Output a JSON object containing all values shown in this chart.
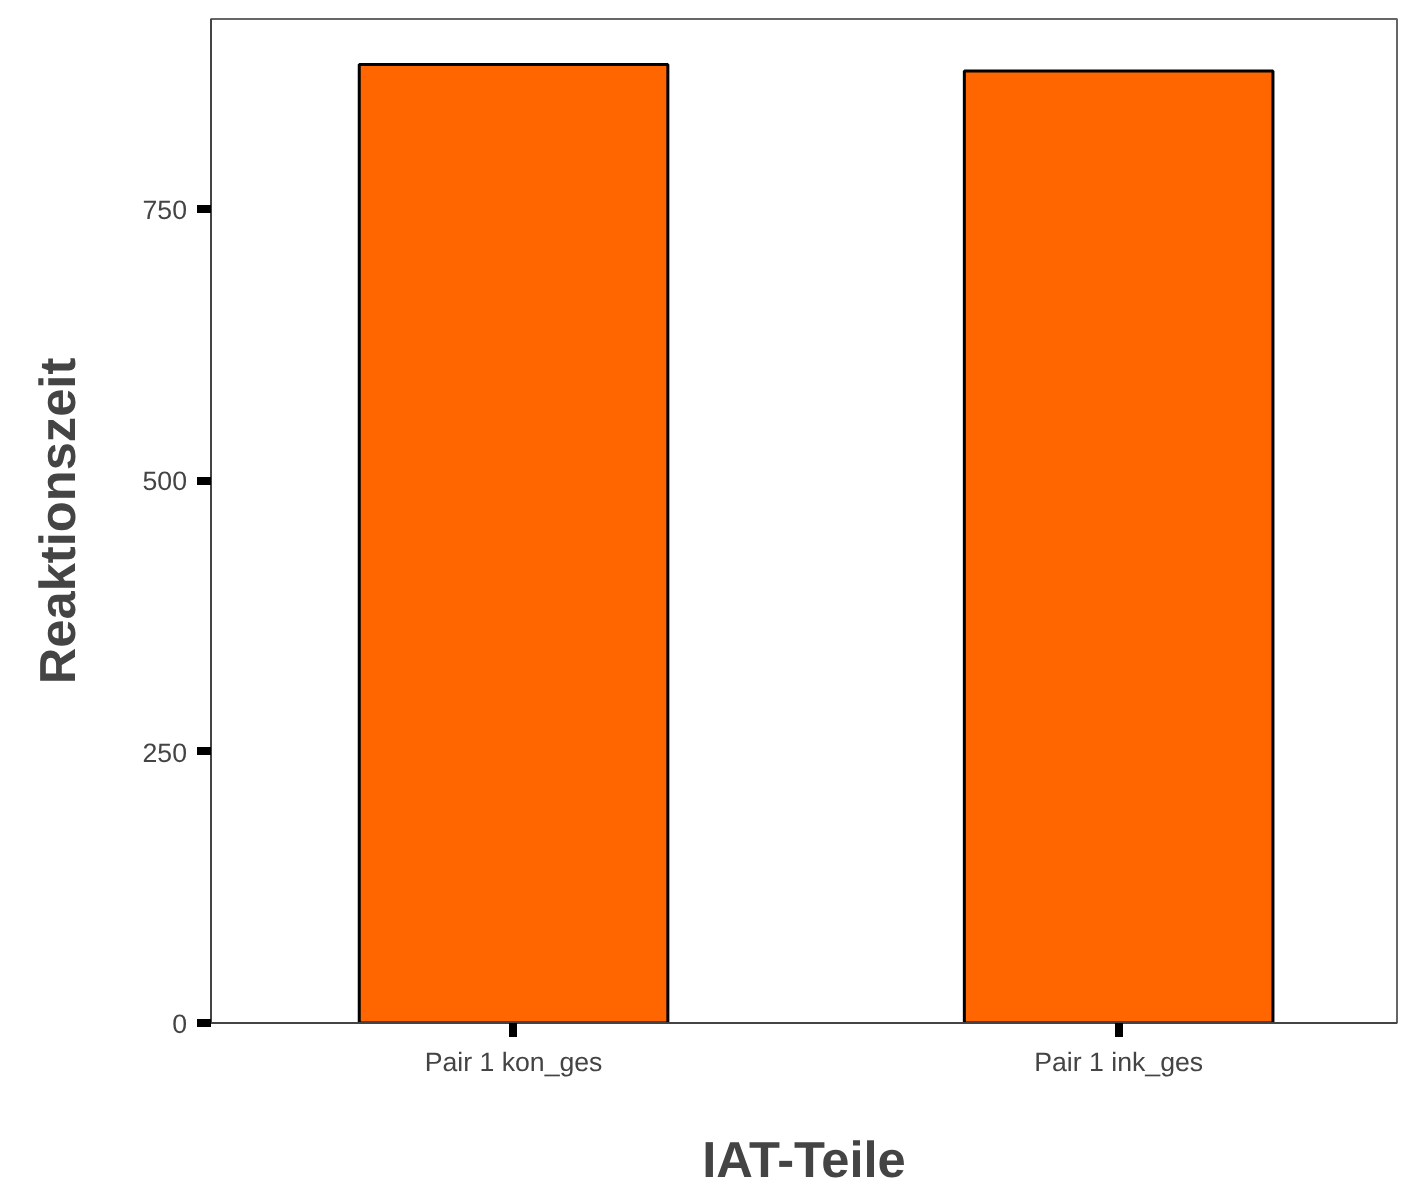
{
  "chart_data": {
    "type": "bar",
    "xlabel": "IAT-Teile",
    "ylabel": "Reaktionszeit",
    "categories": [
      "Pair 1 kon_ges",
      "Pair 1 ink_ges"
    ],
    "values": [
      883,
      877
    ],
    "color": "#ff6600",
    "ylim": [
      0,
      925
    ],
    "yticks": [
      0,
      250,
      500,
      750
    ],
    "grid": false
  }
}
